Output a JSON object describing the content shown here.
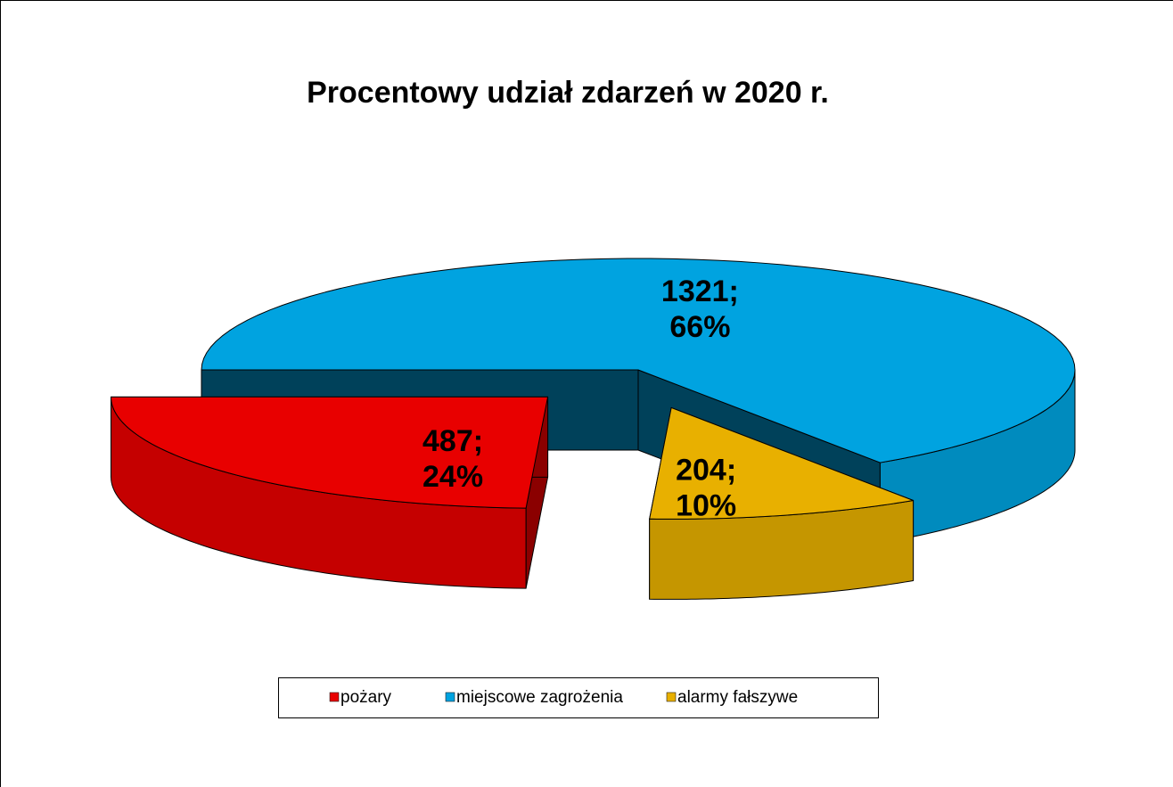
{
  "chart_data": {
    "type": "pie3d",
    "title": "Procentowy udział zdarzeń w 2020 r.",
    "categories": [
      "pożary",
      "miejscowe zagrożenia",
      "alarmy fałszywe"
    ],
    "values": [
      487,
      1321,
      204
    ],
    "value_labels": [
      [
        "487;",
        "24%"
      ],
      [
        "1321;",
        "66%"
      ],
      [
        "204;",
        "10%"
      ]
    ],
    "colors": [
      "#e80000",
      "#00a3e0",
      "#e8b000"
    ],
    "legend": "bottom"
  }
}
